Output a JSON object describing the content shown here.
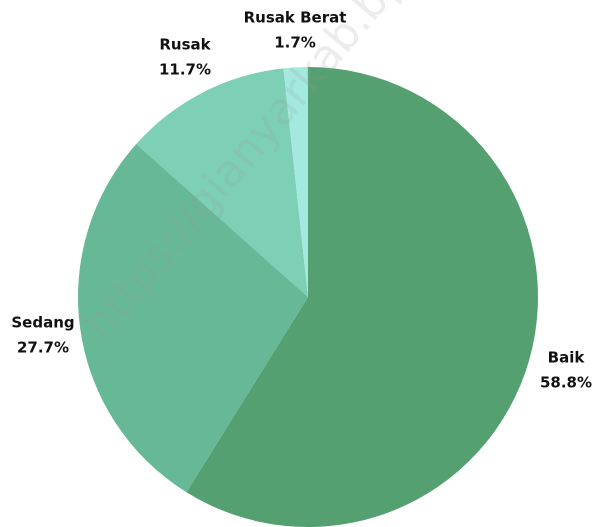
{
  "chart_data": {
    "type": "pie",
    "categories": [
      "Baik",
      "Sedang",
      "Rusak",
      "Rusak Berat"
    ],
    "values": [
      58.8,
      27.7,
      11.7,
      1.7
    ],
    "value_labels": [
      "58.8%",
      "27.7%",
      "11.7%",
      "1.7%"
    ],
    "colors": [
      "#54a070",
      "#67b897",
      "#7dcfb6",
      "#a3e9e0"
    ],
    "watermark": "https://gianyarkab.bp"
  }
}
